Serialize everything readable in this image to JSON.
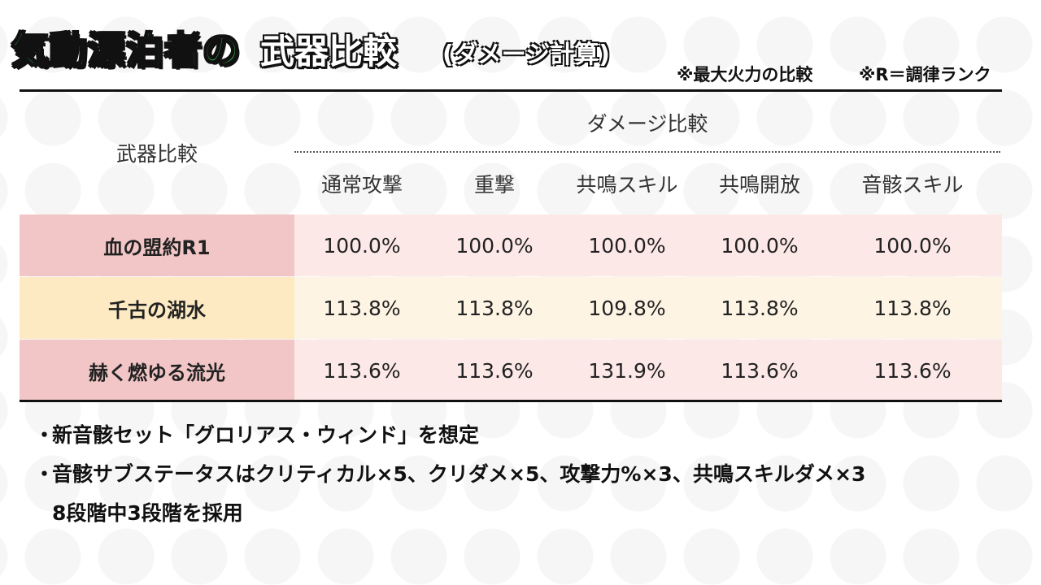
{
  "title": {
    "main_green": "気動漂泊者の",
    "main_white": "武器比較",
    "paren": "(ダメージ計算)"
  },
  "notes": {
    "left": "※最大火力の比較",
    "right": "※R＝調律ランク"
  },
  "table": {
    "row_header": "武器比較",
    "group_header": "ダメージ比較",
    "columns": [
      "通常攻撃",
      "重撃",
      "共鳴スキル",
      "共鳴開放",
      "音骸スキル"
    ],
    "rows": [
      {
        "label": "血の盟約R1",
        "values": [
          "100.0%",
          "100.0%",
          "100.0%",
          "100.0%",
          "100.0%"
        ],
        "label_bg": "#f2c6c6",
        "values_bg": "#fde8e8"
      },
      {
        "label": "千古の湖水",
        "values": [
          "113.8%",
          "113.8%",
          "109.8%",
          "113.8%",
          "113.8%"
        ],
        "label_bg": "#fdeac2",
        "values_bg": "#fdf4e4"
      },
      {
        "label": "赫く燃ゆる流光",
        "values": [
          "113.6%",
          "113.6%",
          "131.9%",
          "113.6%",
          "113.6%"
        ],
        "label_bg": "#f2c6c6",
        "values_bg": "#fde8e8"
      }
    ]
  },
  "bullets": {
    "b1": "新音骸セット「グロリアス・ウィンド」を想定",
    "b2": "音骸サブステータスはクリティカル×5、クリダメ×5、攻撃力%×3、共鳴スキルダメ×3",
    "b2_cont": "8段階中3段階を採用",
    "marker": "・"
  },
  "colors": {
    "title_green": "#3ee05a",
    "row_pink": "#f2c6c6",
    "row_yellow": "#fdeac2"
  }
}
